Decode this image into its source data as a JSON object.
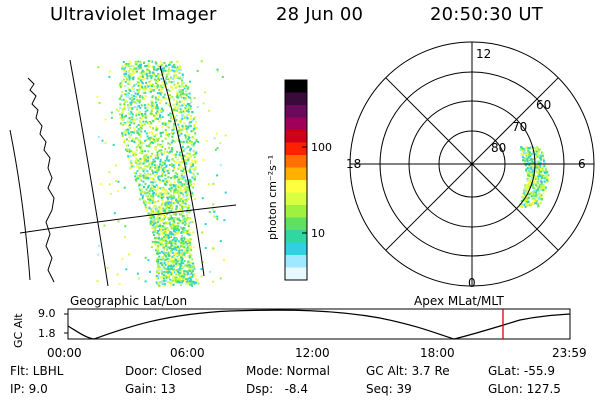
{
  "header": {
    "title": "Ultraviolet Imager",
    "date": "28 Jun 00",
    "time": "20:50:30 UT"
  },
  "left_panel": {
    "caption": "Geographic Lat/Lon"
  },
  "colorbar": {
    "unit_label": "photon cm⁻²s⁻¹",
    "ticks": [
      "100",
      "10"
    ],
    "colors": [
      "#000000",
      "#3a0a3a",
      "#6a0a5a",
      "#a0005a",
      "#d0001a",
      "#ff2000",
      "#ff7000",
      "#ffb000",
      "#ffff40",
      "#d8ff40",
      "#a0f040",
      "#60e060",
      "#30d8a0",
      "#30d0e0",
      "#a0e8ff",
      "#e8f8ff"
    ]
  },
  "polar_panel": {
    "caption": "Apex MLat/MLT",
    "mlt_labels": {
      "top": "12",
      "left": "18",
      "right": "6",
      "bottom": "0"
    },
    "mlat_labels": [
      "60",
      "70",
      "80"
    ]
  },
  "altitude_strip": {
    "ylabel": "GC Alt",
    "yticks": [
      "9.0",
      "1.8"
    ],
    "xticks": [
      "00:00",
      "06:00",
      "12:00",
      "18:00",
      "23:59"
    ],
    "marker_color": "#e00000"
  },
  "footer": {
    "col1": [
      "Flt: LBHL",
      "IP:  9.0"
    ],
    "col2": [
      "Door: Closed",
      "Gain: 13"
    ],
    "col3": [
      "Mode: Normal",
      "Dsp:   -8.4"
    ],
    "col4": [
      "GC Alt: 3.7 Re",
      "Seq: 39"
    ],
    "col5": [
      "GLat: -55.9",
      "GLon: 127.5"
    ]
  }
}
